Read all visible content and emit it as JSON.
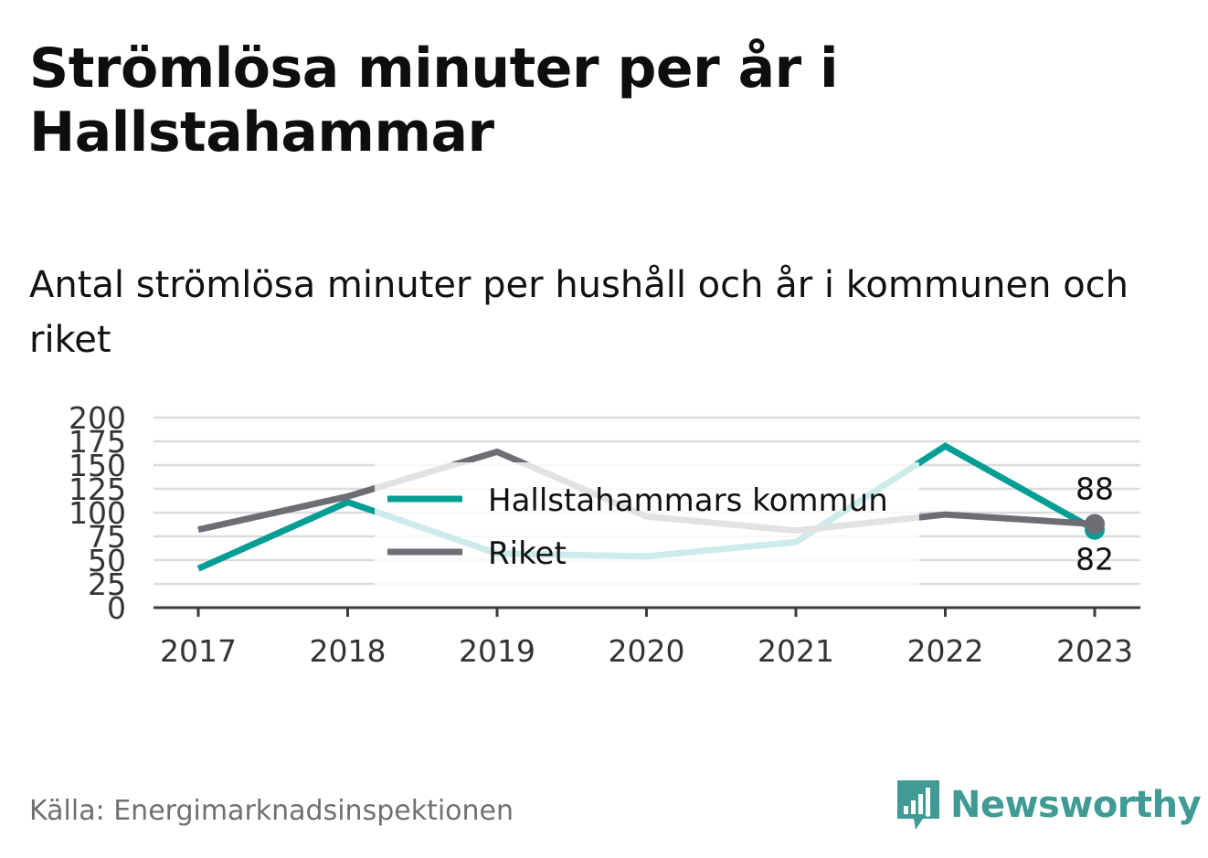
{
  "title": "Strömlösa minuter per år i Hallstahammar",
  "subtitle": "Antal strömlösa minuter per hushåll och år i kommunen och riket",
  "source": "Källa: Energimarknadsinspektionen",
  "brand": "Newsworthy",
  "colors": {
    "kommun": "#069d95",
    "riket": "#6e6d74",
    "grid": "#dcdcdc",
    "axis": "#3b3b3b",
    "brand": "#3f9b94"
  },
  "chart_data": {
    "type": "line",
    "x": [
      "2017",
      "2018",
      "2019",
      "2020",
      "2021",
      "2022",
      "2023"
    ],
    "yticks": [
      "0",
      "25",
      "50",
      "75",
      "100",
      "125",
      "150",
      "175",
      "200"
    ],
    "ylim": [
      0,
      200
    ],
    "grid": true,
    "legend_position": "center",
    "series": [
      {
        "name": "Hallstahammars kommun",
        "key": "kommun",
        "values": [
          41,
          111,
          57,
          54,
          69,
          170,
          82
        ],
        "end_label": "82"
      },
      {
        "name": "Riket",
        "key": "riket",
        "values": [
          82,
          117,
          164,
          96,
          81,
          98,
          88
        ],
        "end_label": "88"
      }
    ]
  }
}
